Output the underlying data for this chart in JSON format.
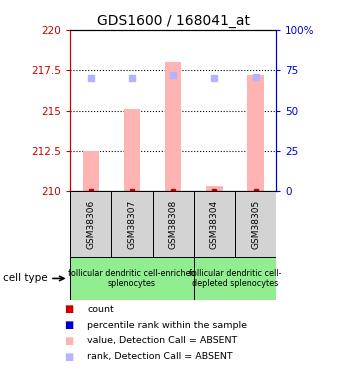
{
  "title": "GDS1600 / 168041_at",
  "samples": [
    "GSM38306",
    "GSM38307",
    "GSM38308",
    "GSM38304",
    "GSM38305"
  ],
  "bar_values": [
    212.5,
    215.1,
    218.0,
    210.3,
    217.2
  ],
  "bar_base": 210.0,
  "rank_values": [
    217.0,
    217.0,
    217.2,
    217.0,
    217.1
  ],
  "ylim_left": [
    210.0,
    220.0
  ],
  "ylim_right": [
    0,
    100
  ],
  "yticks_left": [
    210,
    212.5,
    215,
    217.5,
    220
  ],
  "yticks_right": [
    0,
    25,
    50,
    75,
    100
  ],
  "ytick_labels_left": [
    "210",
    "212.5",
    "215",
    "217.5",
    "220"
  ],
  "ytick_labels_right": [
    "0",
    "25",
    "50",
    "75",
    "100%"
  ],
  "bar_color": "#ffb3b3",
  "rank_color": "#b3b3ff",
  "count_color": "#cc0000",
  "pct_color": "#0000cc",
  "sample_bg_color": "#d3d3d3",
  "group1_color": "#90ee90",
  "group2_color": "#90ee90",
  "group1_label": "follicular dendritic cell-enriched\nsplenocytes",
  "group2_label": "follicular dendritic cell-\ndepleted splenocytes",
  "group1_samples": [
    0,
    1,
    2
  ],
  "group2_samples": [
    3,
    4
  ],
  "cell_type_label": "cell type",
  "legend_items": [
    {
      "color": "#cc0000",
      "label": "count"
    },
    {
      "color": "#0000cc",
      "label": "percentile rank within the sample"
    },
    {
      "color": "#ffb3b3",
      "label": "value, Detection Call = ABSENT"
    },
    {
      "color": "#b3b3ff",
      "label": "rank, Detection Call = ABSENT"
    }
  ],
  "dotted_line_color": "#000000",
  "left_axis_color": "#cc0000",
  "right_axis_color": "#0000cc"
}
